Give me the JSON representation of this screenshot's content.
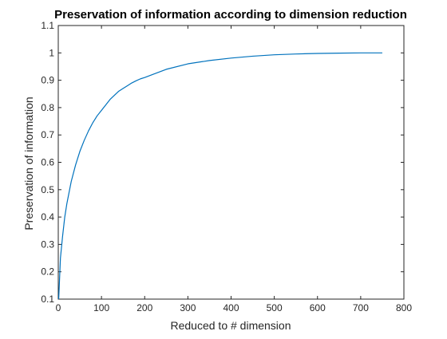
{
  "chart_data": {
    "type": "line",
    "title": "Preservation of information according to dimension reduction",
    "xlabel": "Reduced to # dimension",
    "ylabel": "Preservation of information",
    "xlim": [
      0,
      800
    ],
    "ylim": [
      0.1,
      1.1
    ],
    "xticks": [
      "0",
      "100",
      "200",
      "300",
      "400",
      "500",
      "600",
      "700",
      "800"
    ],
    "yticks": [
      "0.1",
      "0.2",
      "0.3",
      "0.4",
      "0.5",
      "0.6",
      "0.7",
      "0.8",
      "0.9",
      "1",
      "1.1"
    ],
    "grid": false,
    "line_color": "#0072bd",
    "series": [
      {
        "x": [
          1,
          5,
          10,
          15,
          20,
          25,
          30,
          40,
          50,
          60,
          70,
          80,
          90,
          100,
          110,
          120,
          130,
          140,
          150,
          160,
          170,
          180,
          190,
          200,
          220,
          250,
          300,
          350,
          400,
          450,
          500,
          550,
          600,
          650,
          700,
          750
        ],
        "values": [
          0.1,
          0.25,
          0.33,
          0.4,
          0.45,
          0.49,
          0.53,
          0.59,
          0.64,
          0.68,
          0.715,
          0.745,
          0.77,
          0.79,
          0.81,
          0.83,
          0.845,
          0.86,
          0.87,
          0.88,
          0.89,
          0.898,
          0.905,
          0.91,
          0.922,
          0.94,
          0.96,
          0.972,
          0.981,
          0.988,
          0.993,
          0.996,
          0.998,
          0.999,
          1.0,
          1.0
        ]
      }
    ]
  }
}
